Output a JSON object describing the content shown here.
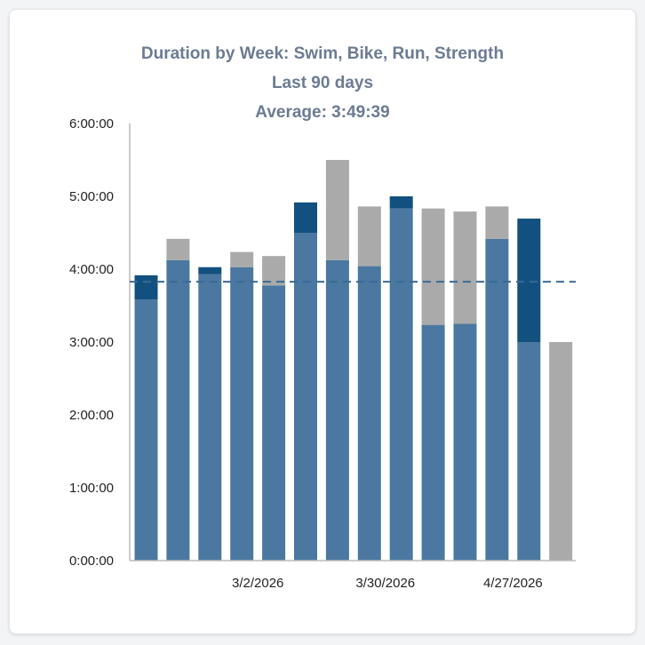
{
  "chart_data": {
    "type": "bar",
    "stacked": true,
    "title": "Duration by Week: Swim, Bike, Run, Strength",
    "subtitle": "Last 90 days",
    "average_label": "Average: 3:49:39",
    "average_seconds": 13779,
    "ylim": [
      0,
      21600
    ],
    "yticks": [
      "0:00:00",
      "1:00:00",
      "2:00:00",
      "3:00:00",
      "4:00:00",
      "5:00:00",
      "6:00:00"
    ],
    "xtick_labels": [
      {
        "index": 3,
        "label": "3/2/2026"
      },
      {
        "index": 7,
        "label": "3/30/2026"
      },
      {
        "index": 11,
        "label": "4/27/2026"
      }
    ],
    "num_bars": 14,
    "series": [
      {
        "color": "#4a78a0",
        "values": [
          12900,
          14850,
          14150,
          14500,
          13600,
          16200,
          14850,
          14550,
          17400,
          11650,
          11700,
          15900,
          10800,
          0
        ]
      },
      {
        "color": "#12507f",
        "values": [
          1200,
          0,
          350,
          0,
          0,
          1500,
          0,
          0,
          600,
          0,
          0,
          0,
          6100,
          0
        ]
      },
      {
        "color": "#aaaaaa",
        "values": [
          0,
          1050,
          0,
          750,
          1450,
          0,
          4950,
          2950,
          0,
          5750,
          5550,
          1600,
          0,
          10800
        ]
      }
    ],
    "colors": {
      "average_line": "#3b6a94",
      "axis": "#bbbbbb",
      "title": "#6b7b93"
    }
  }
}
